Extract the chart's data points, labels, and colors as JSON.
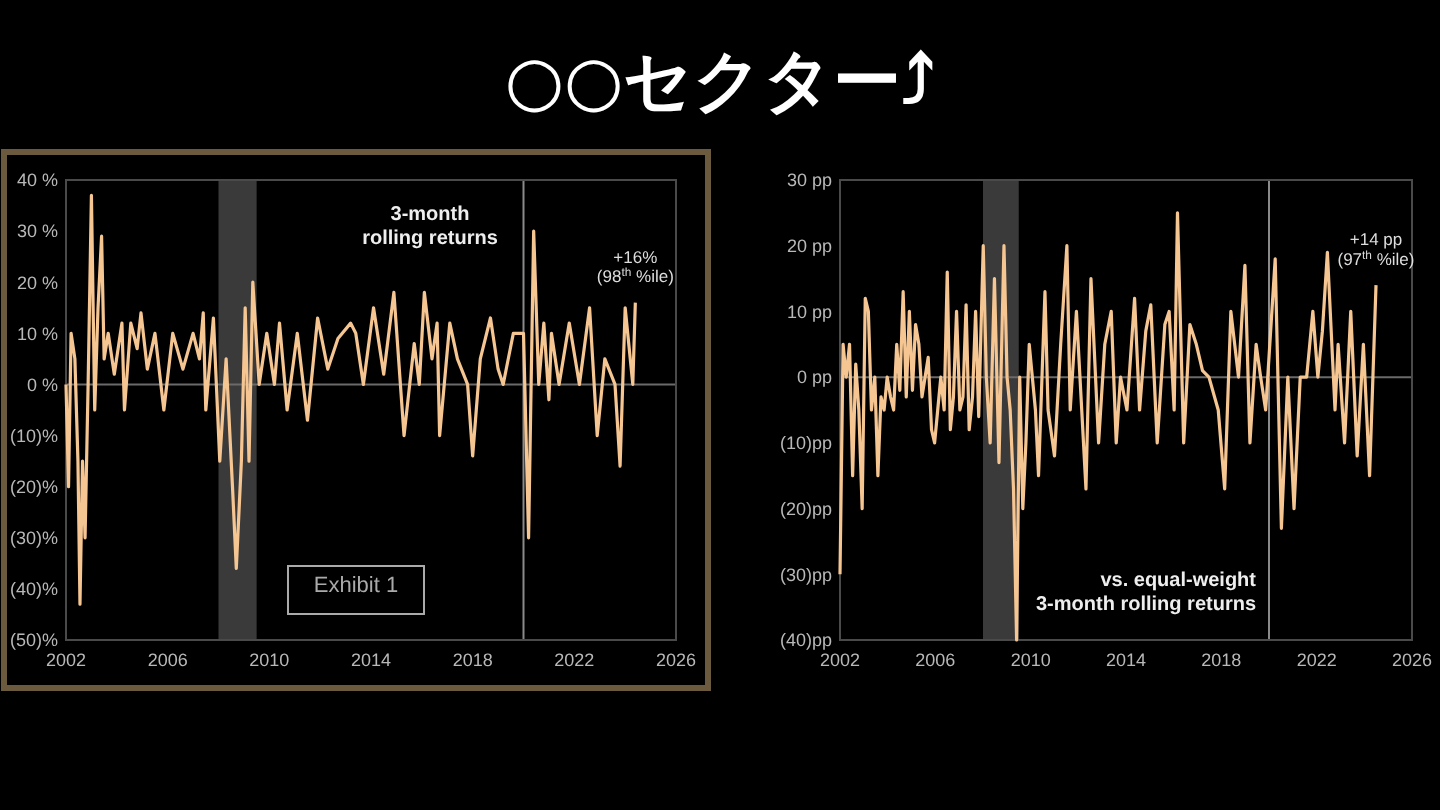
{
  "chart_data": [
    {
      "type": "line",
      "title": "○○セクター⤴",
      "xlim": [
        2002,
        2026
      ],
      "xticks": [
        2002,
        2006,
        2010,
        2014,
        2018,
        2022,
        2026
      ],
      "ylim": [
        -50,
        40
      ],
      "yticks": [
        {
          "value": 40,
          "label": "40 %"
        },
        {
          "value": 30,
          "label": "30 %"
        },
        {
          "value": 20,
          "label": "20 %"
        },
        {
          "value": 10,
          "label": "10 %"
        },
        {
          "value": 0,
          "label": "0 %"
        },
        {
          "value": -10,
          "label": "(10)%"
        },
        {
          "value": -20,
          "label": "(20)%"
        },
        {
          "value": -30,
          "label": "(30)%"
        },
        {
          "value": -40,
          "label": "(40)%"
        },
        {
          "value": -50,
          "label": "(50)%"
        }
      ],
      "grid": false,
      "bands": [
        {
          "axis": "x",
          "from": 2008,
          "to": 2009.5,
          "color": "#3a3a3a"
        }
      ],
      "ref_lines": [
        {
          "axis": "x",
          "value": 2020,
          "color": "#8a8a8a"
        },
        {
          "axis": "y",
          "value": 0,
          "color": "#6a6a6a"
        }
      ],
      "annotations": [
        "3-month\nrolling returns",
        "Exhibit 1",
        {
          "text": "+16%\n(98$^{th}$ %ile)",
          "x": 2024.4,
          "y": 16
        }
      ],
      "series": [
        {
          "color": "#f5c592",
          "x": [
            2002.0,
            2002.1,
            2002.2,
            2002.35,
            2002.47,
            2002.55,
            2002.65,
            2002.75,
            2002.87,
            2003.0,
            2003.13,
            2003.26,
            2003.4,
            2003.5,
            2003.66,
            2003.9,
            2004.2,
            2004.3,
            2004.55,
            2004.8,
            2004.95,
            2005.2,
            2005.5,
            2005.85,
            2006.2,
            2006.6,
            2007.0,
            2007.25,
            2007.4,
            2007.5,
            2007.8,
            2008.05,
            2008.3,
            2008.55,
            2008.7,
            2008.9,
            2009.05,
            2009.2,
            2009.35,
            2009.6,
            2009.9,
            2010.2,
            2010.4,
            2010.7,
            2011.1,
            2011.5,
            2011.9,
            2012.3,
            2012.7,
            2013.2,
            2013.4,
            2013.7,
            2014.1,
            2014.5,
            2014.9,
            2015.3,
            2015.7,
            2015.9,
            2016.1,
            2016.4,
            2016.6,
            2016.7,
            2017.1,
            2017.4,
            2017.8,
            2018.0,
            2018.3,
            2018.7,
            2019.0,
            2019.2,
            2019.6,
            2020.0,
            2020.2,
            2020.4,
            2020.6,
            2020.8,
            2021.0,
            2021.1,
            2021.4,
            2021.8,
            2022.2,
            2022.6,
            2022.9,
            2023.2,
            2023.6,
            2023.8,
            2024.0,
            2024.3,
            2024.4
          ],
          "values": [
            0,
            -20,
            10,
            5,
            -15,
            -43,
            -15,
            -30,
            0,
            37,
            -5,
            15,
            29,
            5,
            10,
            2,
            12,
            -5,
            12,
            7,
            14,
            3,
            10,
            -5,
            10,
            3,
            10,
            5,
            14,
            -5,
            13,
            -15,
            5,
            -20,
            -36,
            -15,
            15,
            -15,
            20,
            0,
            10,
            0,
            12,
            -5,
            10,
            -7,
            13,
            3,
            9,
            12,
            10,
            0,
            15,
            2,
            18,
            -10,
            8,
            0,
            18,
            5,
            12,
            -10,
            12,
            5,
            0,
            -14,
            5,
            13,
            3,
            0,
            10,
            10,
            -30,
            30,
            0,
            12,
            -3,
            10,
            0,
            12,
            0,
            15,
            -10,
            5,
            0,
            -16,
            15,
            0,
            16
          ]
        }
      ]
    },
    {
      "type": "line",
      "xlim": [
        2002,
        2026
      ],
      "xticks": [
        2002,
        2006,
        2010,
        2014,
        2018,
        2022,
        2026
      ],
      "ylim": [
        -40,
        30
      ],
      "yticks": [
        {
          "value": 30,
          "label": "30 pp"
        },
        {
          "value": 20,
          "label": "20 pp"
        },
        {
          "value": 10,
          "label": "10 pp"
        },
        {
          "value": 0,
          "label": "0 pp"
        },
        {
          "value": -10,
          "label": "(10)pp"
        },
        {
          "value": -20,
          "label": "(20)pp"
        },
        {
          "value": -30,
          "label": "(30)pp"
        },
        {
          "value": -40,
          "label": "(40)pp"
        }
      ],
      "grid": false,
      "bands": [
        {
          "axis": "x",
          "from": 2008,
          "to": 2009.5,
          "color": "#3a3a3a"
        }
      ],
      "ref_lines": [
        {
          "axis": "x",
          "value": 2020,
          "color": "#8a8a8a"
        },
        {
          "axis": "y",
          "value": 0,
          "color": "#6a6a6a"
        }
      ],
      "annotations": [
        "vs. equal-weight\n3-month rolling returns",
        {
          "text": "+14 pp\n(97$^{th}$ %ile)",
          "x": 2024.49,
          "y": 14
        }
      ],
      "series": [
        {
          "color": "#f5c592",
          "x": [
            2002.0,
            2002.13,
            2002.26,
            2002.4,
            2002.53,
            2002.66,
            2002.79,
            2002.93,
            2003.06,
            2003.19,
            2003.32,
            2003.46,
            2003.59,
            2003.72,
            2003.85,
            2003.98,
            2004.12,
            2004.25,
            2004.38,
            2004.51,
            2004.65,
            2004.78,
            2004.91,
            2005.04,
            2005.17,
            2005.31,
            2005.44,
            2005.57,
            2005.7,
            2005.84,
            2005.97,
            2006.1,
            2006.23,
            2006.37,
            2006.5,
            2006.63,
            2006.76,
            2006.89,
            2007.03,
            2007.16,
            2007.29,
            2007.42,
            2007.56,
            2007.69,
            2007.82,
            2008.01,
            2008.14,
            2008.3,
            2008.48,
            2008.67,
            2008.88,
            2009.01,
            2009.14,
            2009.28,
            2009.41,
            2009.54,
            2009.67,
            2009.8,
            2009.94,
            2010.2,
            2010.33,
            2010.6,
            2010.73,
            2011.0,
            2011.26,
            2011.52,
            2011.66,
            2011.92,
            2012.32,
            2012.53,
            2012.85,
            2013.11,
            2013.38,
            2013.59,
            2013.77,
            2014.04,
            2014.36,
            2014.57,
            2014.83,
            2015.04,
            2015.31,
            2015.63,
            2015.81,
            2016.02,
            2016.16,
            2016.42,
            2016.68,
            2016.95,
            2017.21,
            2017.48,
            2017.87,
            2018.14,
            2018.4,
            2018.72,
            2018.99,
            2019.2,
            2019.46,
            2019.65,
            2019.86,
            2020.26,
            2020.52,
            2020.79,
            2021.05,
            2021.31,
            2021.58,
            2021.84,
            2022.05,
            2022.24,
            2022.45,
            2022.77,
            2022.9,
            2023.17,
            2023.43,
            2023.7,
            2023.96,
            2024.22,
            2024.49
          ],
          "values": [
            -30,
            5,
            0,
            5,
            -15,
            2,
            -5,
            -20,
            12,
            10,
            -5,
            0,
            -15,
            -3,
            -5,
            0,
            -3,
            -5,
            5,
            -2,
            13,
            -3,
            10,
            -2,
            8,
            5,
            -3,
            0,
            3,
            -8,
            -10,
            -5,
            0,
            -5,
            16,
            -8,
            -3,
            10,
            -5,
            -3,
            11,
            -8,
            -3,
            10,
            -6,
            20,
            0,
            -10,
            15,
            -13,
            20,
            0,
            -5,
            -17,
            -40,
            0,
            -20,
            -10,
            5,
            -5,
            -15,
            13,
            -5,
            -12,
            5,
            20,
            -5,
            10,
            -17,
            15,
            -10,
            5,
            10,
            -10,
            0,
            -5,
            12,
            -5,
            7,
            11,
            -10,
            8,
            10,
            -5,
            25,
            -10,
            8,
            5,
            1,
            0,
            -5,
            -17,
            10,
            0,
            17,
            -10,
            5,
            0,
            -5,
            18,
            -23,
            0,
            -20,
            0,
            0,
            10,
            0,
            7,
            19,
            -5,
            5,
            -10,
            10,
            -12,
            5,
            -15,
            14
          ]
        }
      ]
    }
  ]
}
